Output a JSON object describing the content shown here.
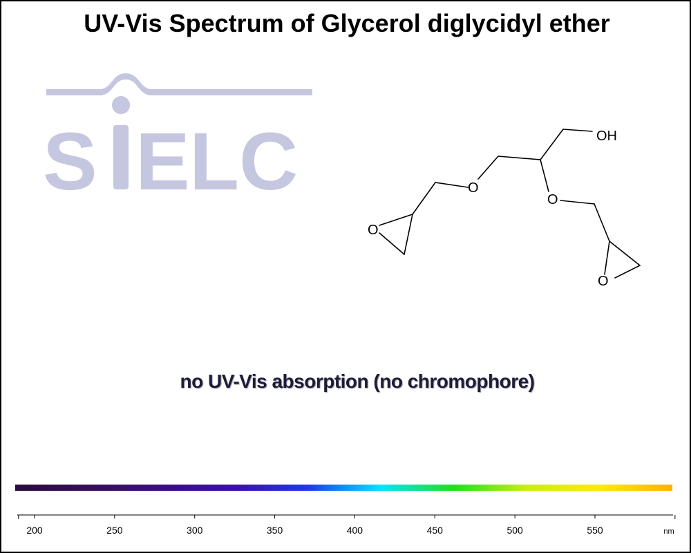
{
  "title": "UV-Vis Spectrum of Glycerol diglycidyl ether",
  "logo_text": "SIELC",
  "note": "no UV-Vis absorption (no chromophore)",
  "structure_labels": [
    "OH",
    "O",
    "O",
    "O",
    "O"
  ],
  "colors": {
    "title": "#000000",
    "logo": "#c5c6e0",
    "note": "#1e1d35",
    "spectrum_stops": [
      "#2a0a3e",
      "#360d5c",
      "#3a0e7e",
      "#3d10a8",
      "#1f36f0",
      "#00e6ff",
      "#1de01d",
      "#c8f00a",
      "#ffea00",
      "#ffb200"
    ]
  },
  "chart_data": {
    "type": "line",
    "title": "UV-Vis Spectrum of Glycerol diglycidyl ether",
    "xlabel": "nm",
    "ylabel": "",
    "xlim": [
      190,
      600
    ],
    "x_ticks": [
      200,
      250,
      300,
      350,
      400,
      450,
      500,
      550
    ],
    "series": [],
    "annotation": "no UV-Vis absorption (no chromophore)",
    "grid": false
  }
}
